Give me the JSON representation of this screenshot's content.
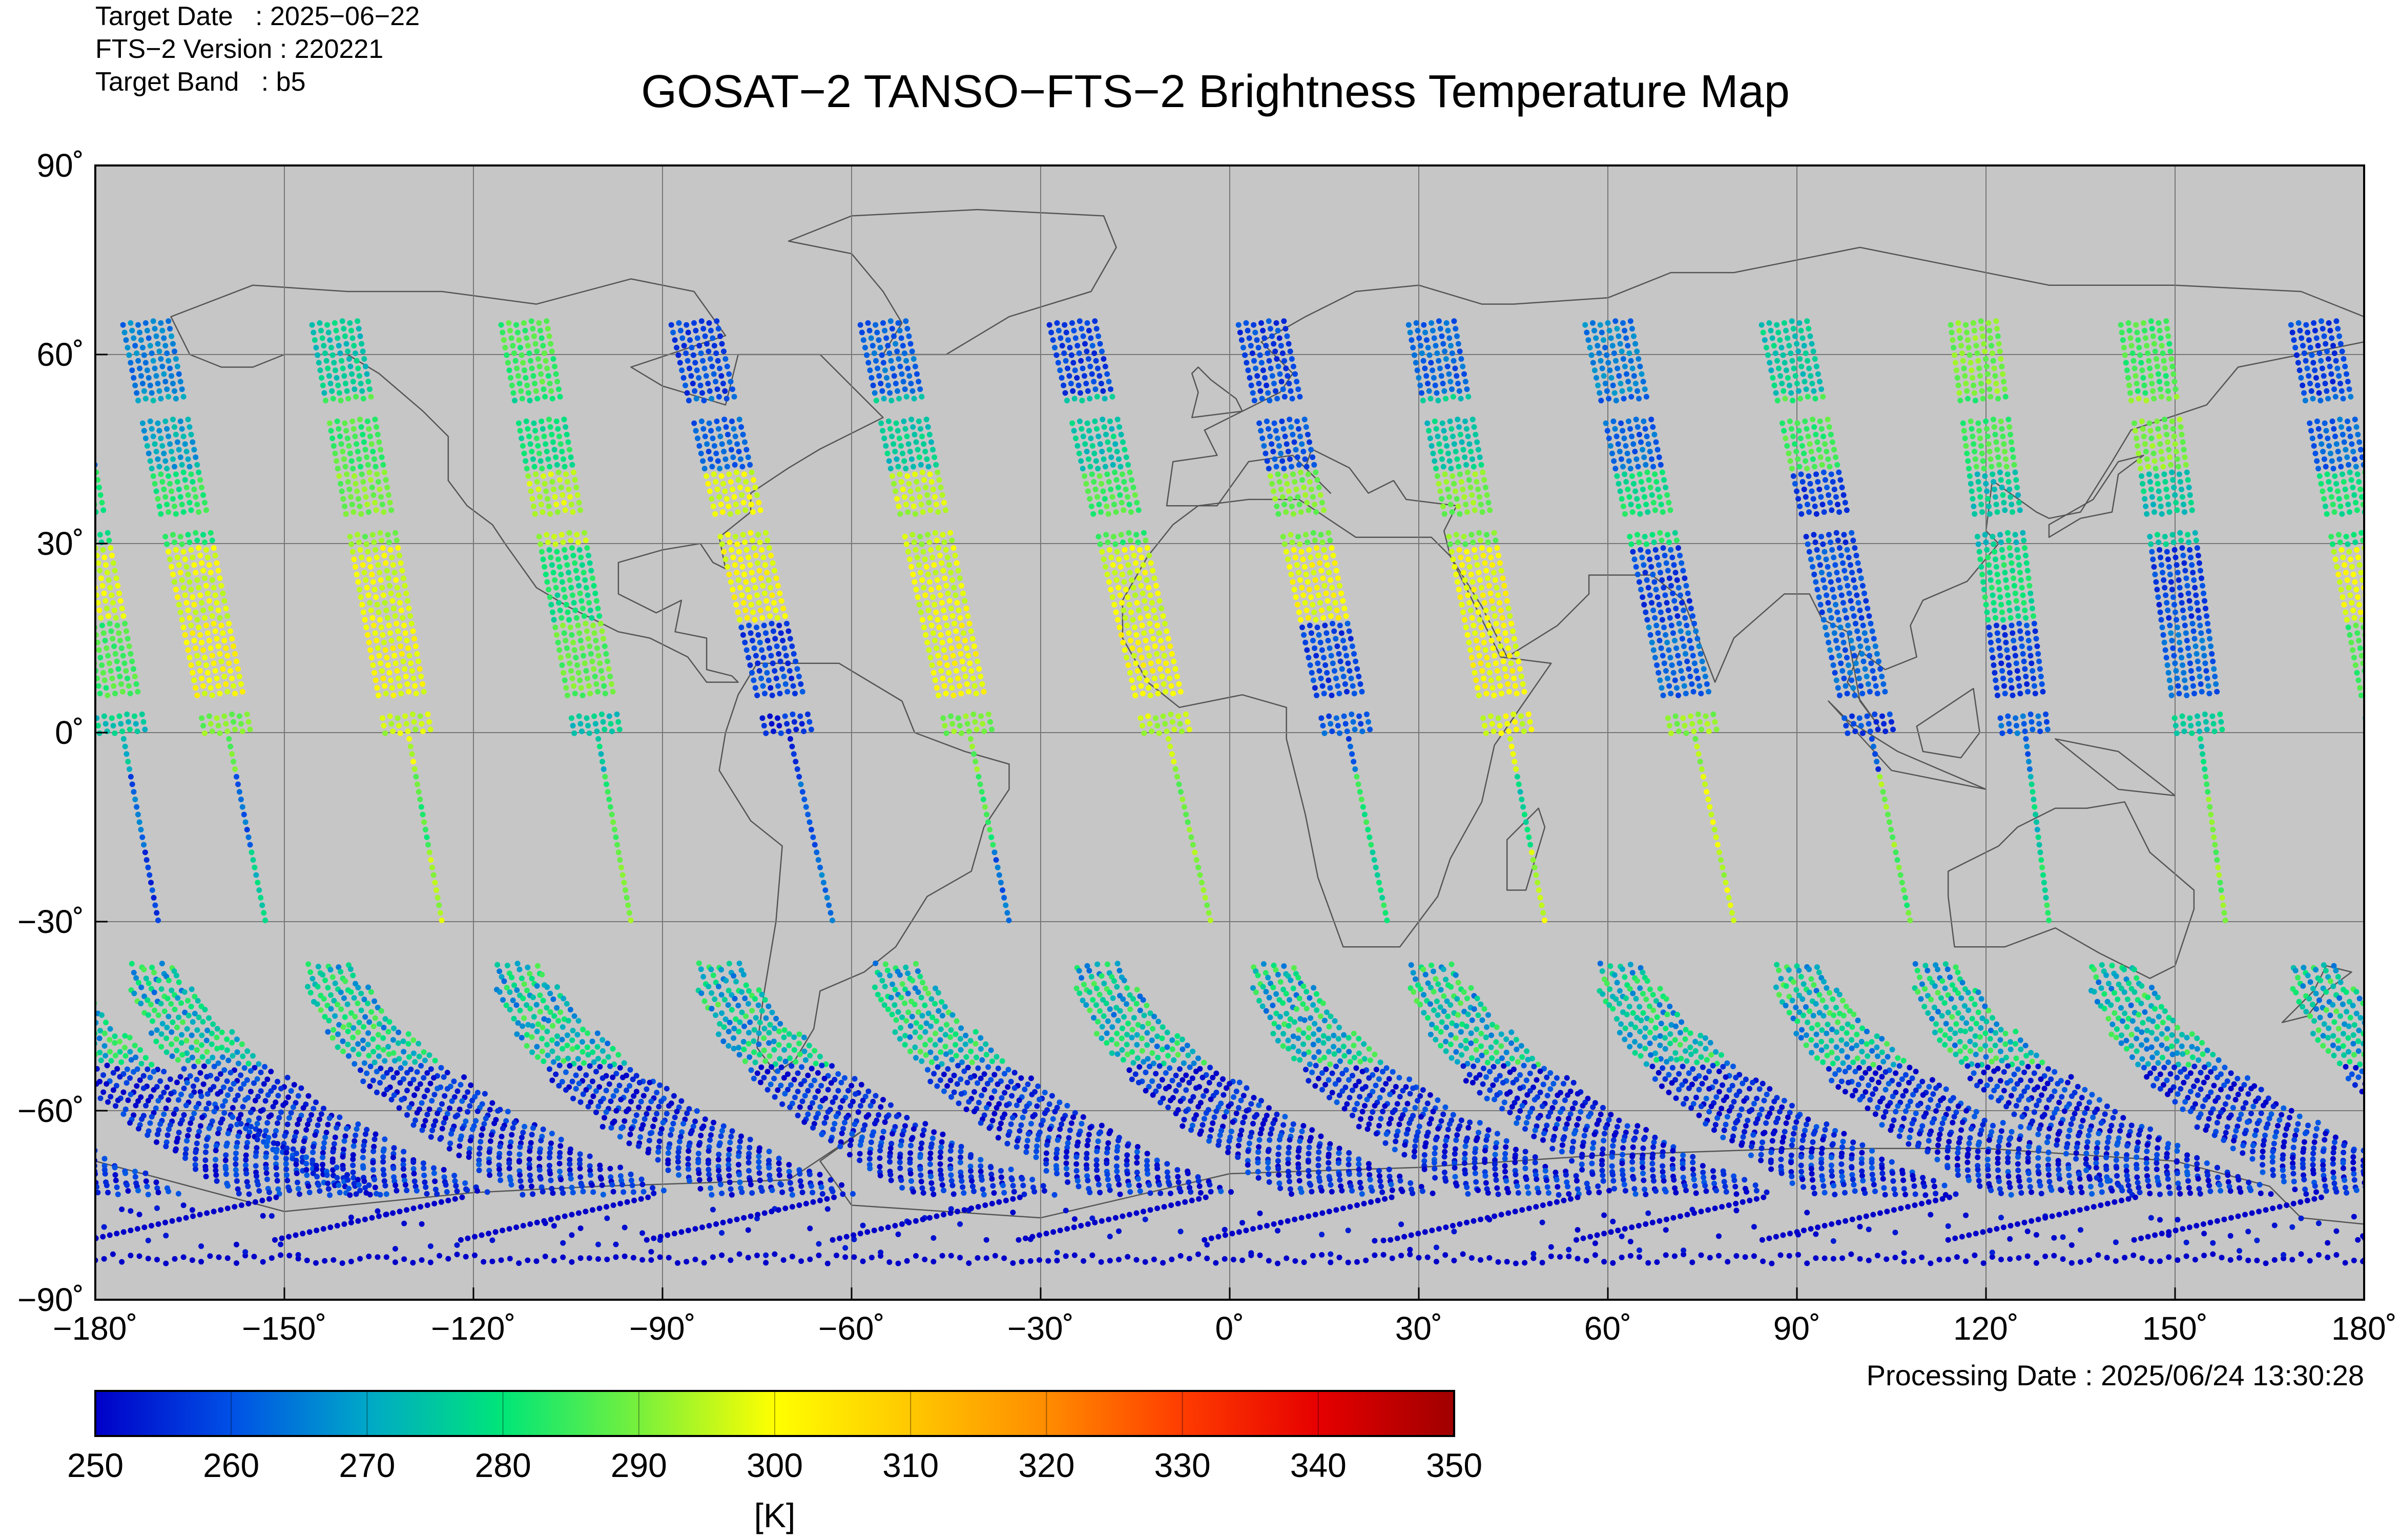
{
  "header": {
    "target_date": "Target Date   : 2025−06−22",
    "fts_version": "FTS−2 Version : 220221",
    "target_band": "Target Band   : b5",
    "title": "GOSAT−2 TANSO−FTS−2 Brightness Temperature Map"
  },
  "footer": {
    "processing_date": "Processing Date : 2025/06/24 13:30:28"
  },
  "map": {
    "background_color": "#c6c6c6",
    "coastline_color": "#555555",
    "lon_range": [
      -180,
      180
    ],
    "lat_range": [
      -90,
      90
    ],
    "grid": true,
    "lon_ticks": [
      "−180˚",
      "−150˚",
      "−120˚",
      "−90˚",
      "−60˚",
      "−30˚",
      "0˚",
      "30˚",
      "60˚",
      "90˚",
      "120˚",
      "150˚",
      "180˚"
    ],
    "lat_ticks": [
      "90˚",
      "60˚",
      "30˚",
      "0˚",
      "−30˚",
      "−60˚",
      "−90˚"
    ]
  },
  "colorbar": {
    "min": 250,
    "max": 350,
    "unit": "[K]",
    "tick_labels": [
      "250",
      "260",
      "270",
      "280",
      "290",
      "300",
      "310",
      "320",
      "330",
      "340",
      "350"
    ],
    "colors": [
      "#0000c8",
      "#0050e6",
      "#00a8c8",
      "#00e678",
      "#78f03c",
      "#ffff00",
      "#ffc800",
      "#ff8c00",
      "#ff3c00",
      "#e60000",
      "#a00000"
    ]
  },
  "chart_data": {
    "type": "scatter",
    "title": "GOSAT−2 TANSO−FTS−2 Brightness Temperature Map",
    "xlim": [
      -180,
      180
    ],
    "ylim": [
      -90,
      90
    ],
    "colorscale_range": [
      250,
      350
    ],
    "tracks": [
      {
        "lon_north": -172,
        "lat_north": 65,
        "lon_south": -153,
        "lat_south": -30,
        "temps_by_segment": [
          265,
          270,
          282,
          298,
          300,
          290,
          262,
          275
        ]
      },
      {
        "lon_north": -142,
        "lat_north": 65,
        "lon_south": -125,
        "lat_south": -30,
        "temps_by_segment": [
          275,
          285,
          290,
          298,
          300,
          295,
          285,
          295
        ]
      },
      {
        "lon_north": -112,
        "lat_north": 65,
        "lon_south": -95,
        "lat_south": -30,
        "temps_by_segment": [
          285,
          280,
          295,
          280,
          288,
          275,
          285,
          290
        ]
      },
      {
        "lon_north": -85,
        "lat_north": 65,
        "lon_south": -63,
        "lat_south": -30,
        "temps_by_segment": [
          258,
          262,
          298,
          300,
          258,
          255,
          260,
          262
        ]
      },
      {
        "lon_north": -55,
        "lat_north": 65,
        "lon_south": -35,
        "lat_south": -30,
        "temps_by_segment": [
          262,
          275,
          295,
          298,
          300,
          290,
          285,
          262
        ]
      },
      {
        "lon_north": -25,
        "lat_north": 65,
        "lon_south": -3,
        "lat_south": -30,
        "temps_by_segment": [
          258,
          275,
          285,
          298,
          300,
          295,
          290,
          292
        ]
      },
      {
        "lon_north": 5,
        "lat_north": 65,
        "lon_south": 25,
        "lat_south": -30,
        "temps_by_segment": [
          258,
          260,
          290,
          300,
          258,
          260,
          282,
          280
        ]
      },
      {
        "lon_north": 32,
        "lat_north": 65,
        "lon_south": 50,
        "lat_south": -30,
        "temps_by_segment": [
          262,
          275,
          290,
          300,
          300,
          298,
          275,
          295
        ]
      },
      {
        "lon_north": 60,
        "lat_north": 65,
        "lon_south": 80,
        "lat_south": -30,
        "temps_by_segment": [
          265,
          262,
          280,
          258,
          262,
          292,
          295,
          296
        ]
      },
      {
        "lon_north": 88,
        "lat_north": 65,
        "lon_south": 108,
        "lat_south": -30,
        "temps_by_segment": [
          275,
          285,
          258,
          260,
          262,
          258,
          290,
          286
        ]
      },
      {
        "lon_north": 118,
        "lat_north": 65,
        "lon_south": 130,
        "lat_south": -30,
        "temps_by_segment": [
          290,
          285,
          275,
          280,
          258,
          262,
          275,
          280
        ]
      },
      {
        "lon_north": 145,
        "lat_north": 65,
        "lon_south": 158,
        "lat_south": -30,
        "temps_by_segment": [
          285,
          290,
          275,
          258,
          262,
          275,
          288,
          290
        ]
      },
      {
        "lon_north": 172,
        "lat_north": 65,
        "lon_south": 190,
        "lat_south": -30,
        "temps_by_segment": [
          258,
          262,
          280,
          298,
          285,
          275,
          262,
          258
        ]
      }
    ],
    "southern_arcs_temp": 252,
    "antarctic_temp": 250
  }
}
